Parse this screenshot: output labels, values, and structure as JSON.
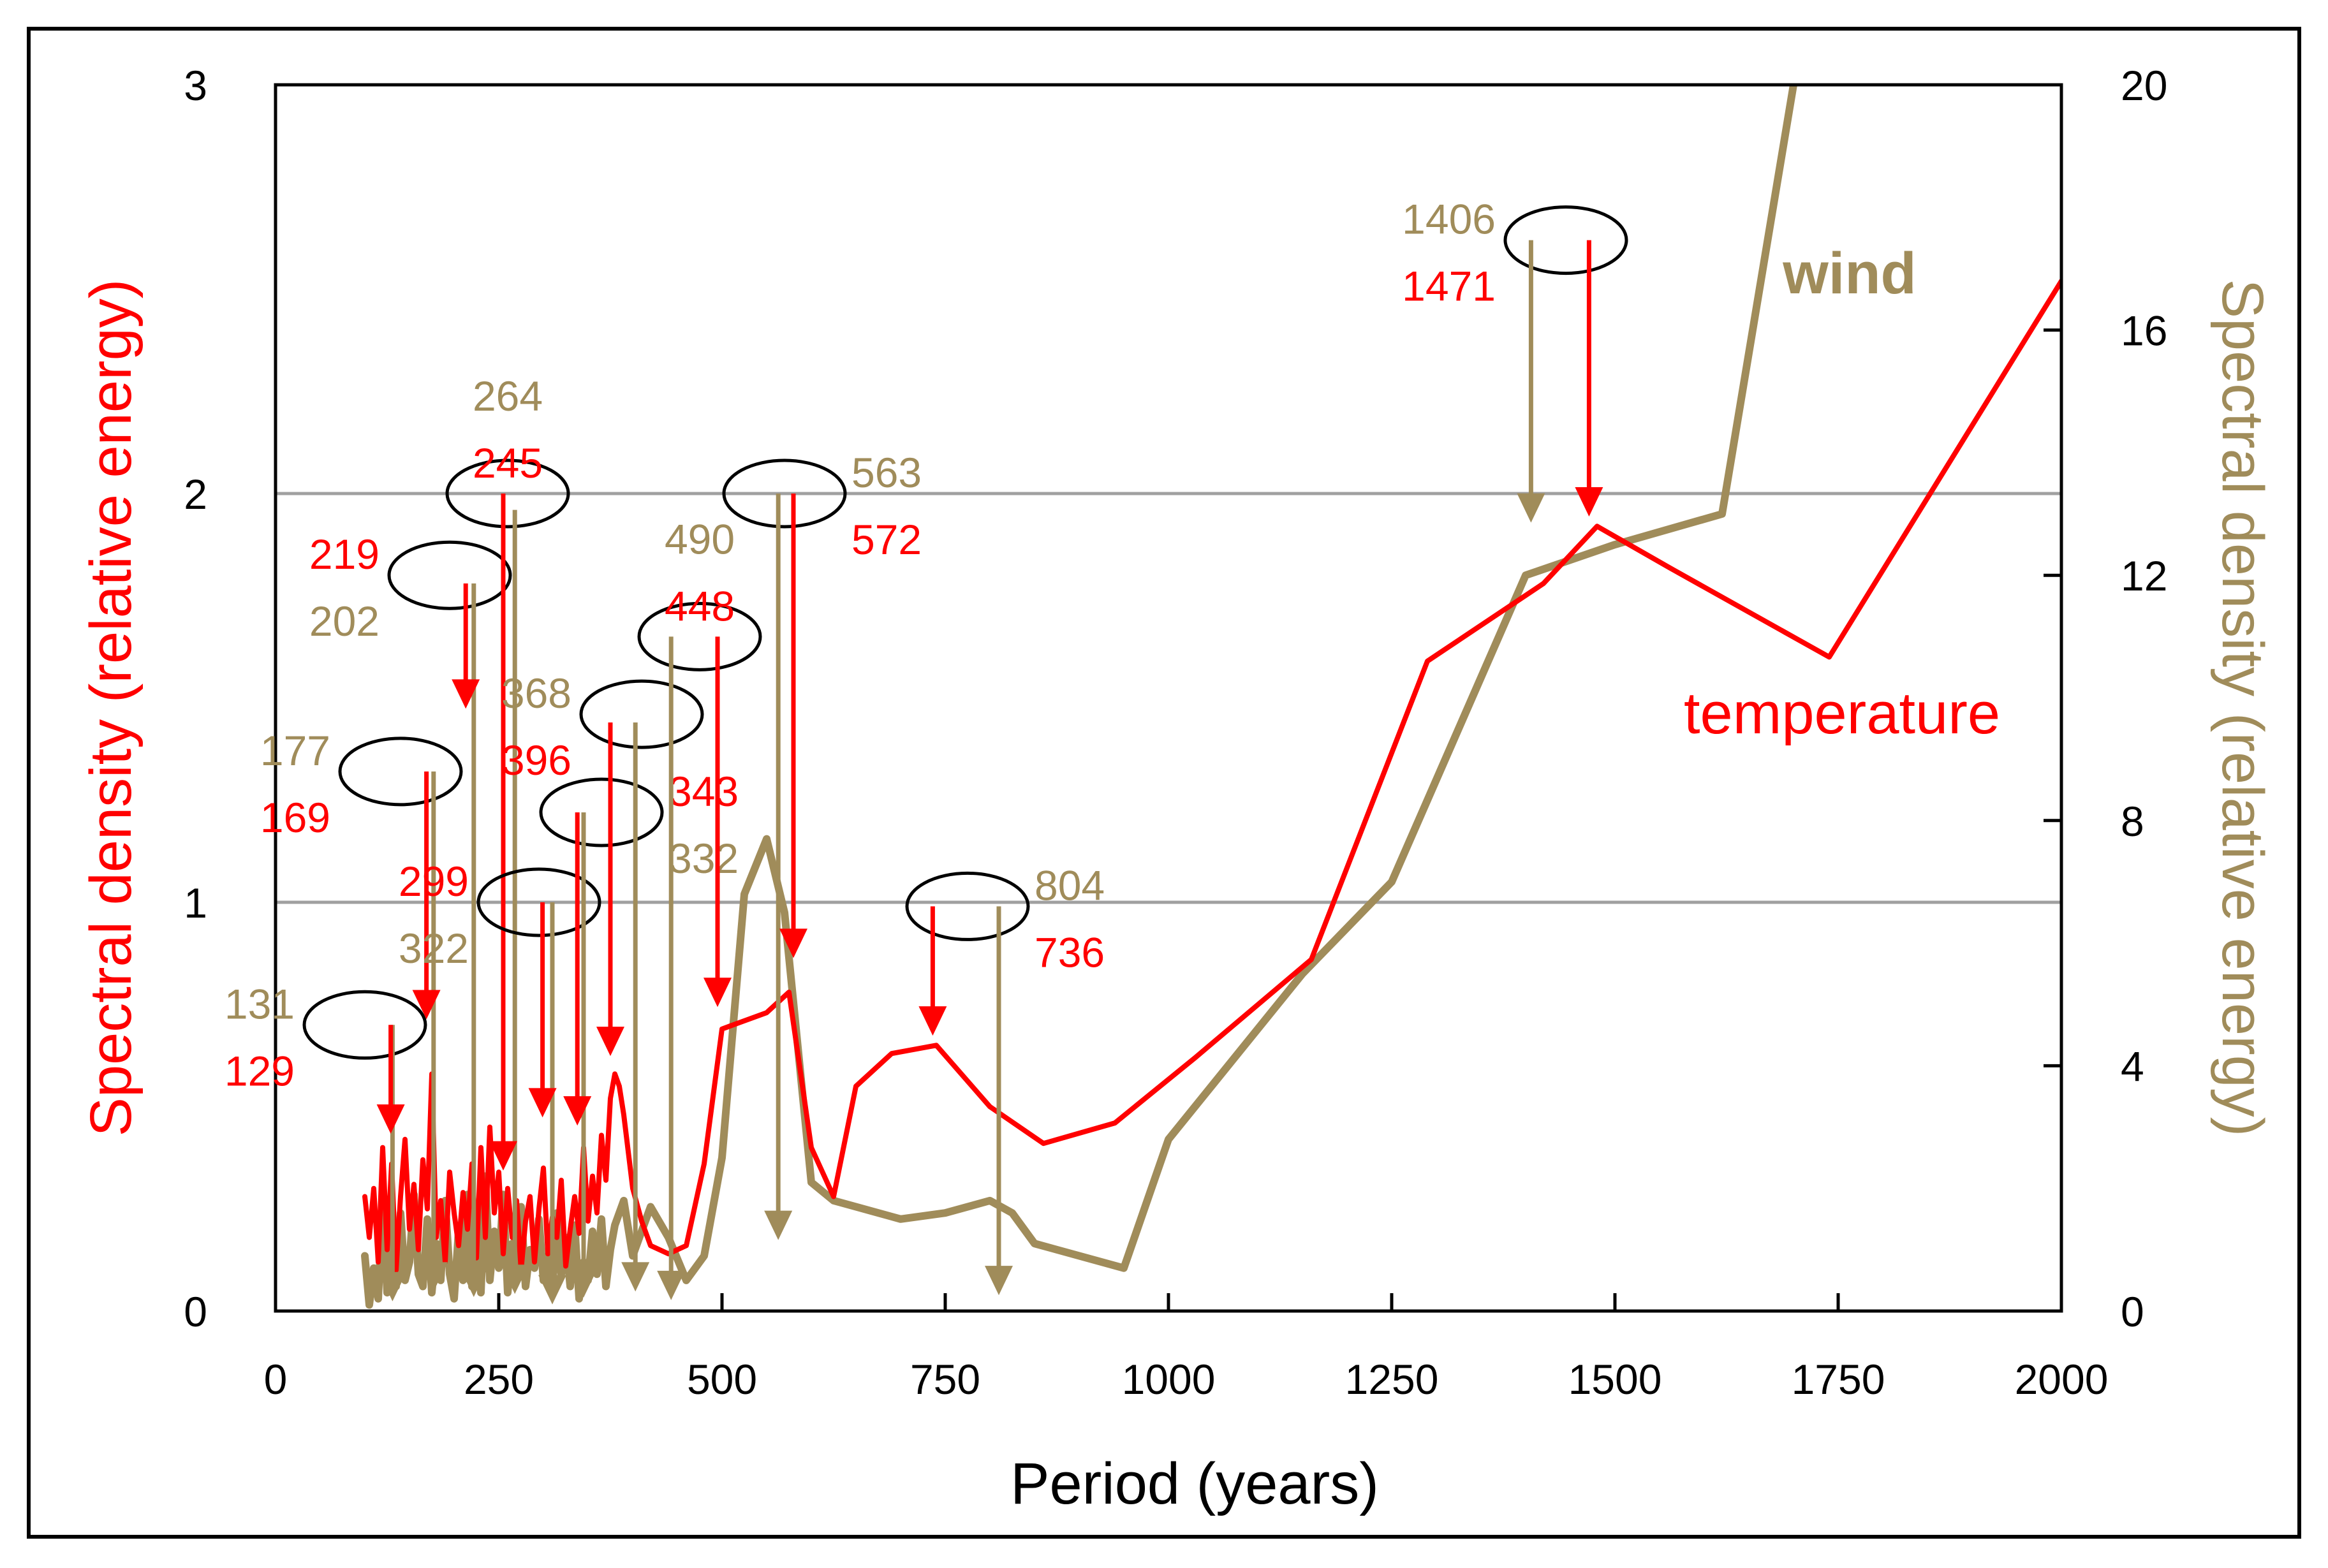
{
  "chart_data": {
    "type": "line",
    "title": "",
    "xlabel": "Period (years)",
    "ylabel_left": "Spectral density (relative energy)",
    "ylabel_right": "Spectral density (relative energy)",
    "xlim": [
      0,
      2000
    ],
    "ylim_left": [
      0,
      3
    ],
    "ylim_right": [
      0,
      20
    ],
    "x_ticks": [
      0,
      250,
      500,
      750,
      1000,
      1250,
      1500,
      1750,
      2000
    ],
    "x_tick_labels": [
      "0",
      "250",
      "500",
      "750",
      "1000",
      "1250",
      "1500",
      "1750",
      "2000"
    ],
    "y_left_ticks": [
      0,
      1,
      2,
      3
    ],
    "y_left_tick_labels": [
      "0",
      "1",
      "2",
      "3"
    ],
    "y_right_ticks": [
      0,
      4,
      8,
      12,
      16,
      20
    ],
    "y_right_tick_labels": [
      "0",
      "4",
      "8",
      "12",
      "16",
      "20"
    ],
    "gridlines_left": [
      1,
      2
    ],
    "colors": {
      "temperature": "#ff0000",
      "wind": "#a08c5a",
      "grid": "#a0a0a0"
    },
    "series": [
      {
        "name": "temperature",
        "label": "temperature",
        "axis": "left",
        "x": [
          100,
          105,
          110,
          115,
          120,
          125,
          130,
          135,
          140,
          145,
          150,
          155,
          160,
          165,
          170,
          175,
          180,
          185,
          190,
          195,
          200,
          205,
          210,
          215,
          220,
          225,
          230,
          235,
          240,
          245,
          250,
          255,
          260,
          265,
          270,
          275,
          280,
          285,
          290,
          295,
          300,
          305,
          310,
          315,
          320,
          325,
          330,
          335,
          340,
          345,
          350,
          355,
          360,
          365,
          370,
          375,
          380,
          385,
          390,
          400,
          410,
          420,
          440,
          460,
          480,
          500,
          550,
          575,
          600,
          625,
          650,
          690,
          740,
          800,
          860,
          940,
          1030,
          1160,
          1290,
          1420,
          1480,
          1560,
          1740,
          2000
        ],
        "y": [
          0.28,
          0.18,
          0.3,
          0.12,
          0.4,
          0.15,
          0.36,
          0.1,
          0.28,
          0.42,
          0.2,
          0.31,
          0.15,
          0.37,
          0.25,
          0.58,
          0.18,
          0.27,
          0.12,
          0.34,
          0.24,
          0.16,
          0.29,
          0.2,
          0.36,
          0.13,
          0.4,
          0.18,
          0.45,
          0.24,
          0.34,
          0.14,
          0.3,
          0.18,
          0.27,
          0.1,
          0.22,
          0.28,
          0.12,
          0.25,
          0.35,
          0.14,
          0.23,
          0.18,
          0.32,
          0.11,
          0.2,
          0.28,
          0.19,
          0.4,
          0.22,
          0.33,
          0.24,
          0.43,
          0.32,
          0.52,
          0.58,
          0.55,
          0.48,
          0.3,
          0.22,
          0.16,
          0.14,
          0.16,
          0.36,
          0.69,
          0.73,
          0.78,
          0.4,
          0.28,
          0.55,
          0.63,
          0.65,
          0.5,
          0.41,
          0.46,
          0.62,
          0.86,
          1.59,
          1.78,
          1.92,
          1.82,
          1.6,
          2.52
        ]
      },
      {
        "name": "wind",
        "label": "wind",
        "axis": "right",
        "x": [
          100,
          105,
          110,
          115,
          120,
          125,
          130,
          135,
          140,
          145,
          150,
          155,
          160,
          165,
          170,
          175,
          180,
          185,
          190,
          195,
          200,
          205,
          210,
          215,
          220,
          225,
          230,
          235,
          240,
          245,
          250,
          255,
          260,
          265,
          270,
          275,
          280,
          285,
          290,
          295,
          300,
          305,
          310,
          315,
          320,
          325,
          330,
          335,
          340,
          345,
          350,
          355,
          360,
          365,
          370,
          375,
          380,
          390,
          400,
          420,
          440,
          460,
          480,
          500,
          525,
          550,
          570,
          600,
          625,
          650,
          700,
          750,
          800,
          825,
          850,
          950,
          1000,
          1150,
          1250,
          1400,
          1500,
          1620,
          1700
        ],
        "y": [
          0.9,
          0.1,
          0.7,
          0.2,
          1.8,
          0.3,
          1.2,
          0.4,
          1.6,
          0.5,
          0.8,
          1.9,
          0.6,
          0.4,
          1.5,
          0.3,
          1.1,
          0.5,
          1.8,
          0.6,
          0.2,
          1.3,
          0.5,
          1.9,
          0.4,
          1.6,
          0.3,
          2.2,
          0.5,
          1.3,
          0.7,
          1.9,
          0.3,
          1.1,
          0.6,
          1.7,
          0.4,
          1.0,
          0.7,
          1.5,
          0.5,
          0.9,
          0.3,
          1.6,
          0.6,
          1.2,
          0.4,
          1.4,
          0.2,
          0.8,
          0.5,
          1.3,
          0.6,
          1.5,
          0.4,
          1.0,
          1.4,
          1.8,
          0.9,
          1.7,
          1.2,
          0.5,
          0.9,
          2.5,
          6.8,
          7.7,
          6.5,
          2.1,
          1.8,
          1.7,
          1.5,
          1.6,
          1.8,
          1.6,
          1.1,
          0.7,
          2.8,
          5.5,
          7.0,
          12.0,
          12.5,
          13.0,
          20.0
        ]
      }
    ],
    "annotations": [
      {
        "ellipse_x": 100,
        "ellipse_y": 0.7,
        "labels": [
          {
            "text": "131",
            "series": "wind"
          },
          {
            "text": "129",
            "series": "temperature"
          }
        ],
        "label_side": "left",
        "arrows": [
          {
            "series": "wind",
            "x": 131,
            "y_from": 0.7,
            "y_to": 0.2
          },
          {
            "series": "temperature",
            "x": 129,
            "y_from": 0.7,
            "y_to": 0.44
          }
        ]
      },
      {
        "ellipse_x": 140,
        "ellipse_y": 1.32,
        "labels": [
          {
            "text": "177",
            "series": "wind"
          },
          {
            "text": "169",
            "series": "temperature"
          }
        ],
        "label_side": "left",
        "arrows": [
          {
            "series": "wind",
            "x": 177,
            "y_from": 1.32,
            "y_to": 0.36
          },
          {
            "series": "temperature",
            "x": 169,
            "y_from": 1.32,
            "y_to": 0.72
          }
        ]
      },
      {
        "ellipse_x": 195,
        "ellipse_y": 1.8,
        "labels": [
          {
            "text": "219",
            "series": "temperature"
          },
          {
            "text": "202",
            "series": "wind"
          }
        ],
        "label_side": "left",
        "arrows": [
          {
            "series": "wind",
            "x": 222,
            "y_from": 1.78,
            "y_to": 0.27
          },
          {
            "series": "temperature",
            "x": 213,
            "y_from": 1.78,
            "y_to": 1.48
          }
        ]
      },
      {
        "ellipse_x": 260,
        "ellipse_y": 2.0,
        "labels": [
          {
            "text": "264",
            "series": "wind"
          },
          {
            "text": "245",
            "series": "temperature"
          }
        ],
        "label_side": "above",
        "arrows": [
          {
            "series": "wind",
            "x": 268,
            "y_from": 1.96,
            "y_to": 0.32
          },
          {
            "series": "temperature",
            "x": 255,
            "y_from": 2.0,
            "y_to": 0.35
          }
        ]
      },
      {
        "ellipse_x": 295,
        "ellipse_y": 1.0,
        "labels": [
          {
            "text": "299",
            "series": "temperature"
          },
          {
            "text": "322",
            "series": "wind"
          }
        ],
        "label_side": "left",
        "arrows": [
          {
            "series": "wind",
            "x": 310,
            "y_from": 1.0,
            "y_to": 0.15
          },
          {
            "series": "temperature",
            "x": 299,
            "y_from": 1.0,
            "y_to": 0.48
          }
        ]
      },
      {
        "ellipse_x": 365,
        "ellipse_y": 1.22,
        "labels": [
          {
            "text": "343",
            "series": "temperature"
          },
          {
            "text": "332",
            "series": "wind"
          }
        ],
        "label_side": "right",
        "arrows": [
          {
            "series": "wind",
            "x": 345,
            "y_from": 1.22,
            "y_to": 0.26
          },
          {
            "series": "temperature",
            "x": 338,
            "y_from": 1.22,
            "y_to": 0.46
          }
        ]
      },
      {
        "ellipse_x": 410,
        "ellipse_y": 1.46,
        "labels": [
          {
            "text": "368",
            "series": "wind"
          },
          {
            "text": "396",
            "series": "temperature"
          }
        ],
        "label_side": "left",
        "arrows": [
          {
            "series": "wind",
            "x": 403,
            "y_from": 1.44,
            "y_to": 0.36
          },
          {
            "series": "temperature",
            "x": 375,
            "y_from": 1.44,
            "y_to": 0.63
          }
        ]
      },
      {
        "ellipse_x": 475,
        "ellipse_y": 1.65,
        "labels": [
          {
            "text": "490",
            "series": "wind"
          },
          {
            "text": "448",
            "series": "temperature"
          }
        ],
        "label_side": "above",
        "arrows": [
          {
            "series": "wind",
            "x": 443,
            "y_from": 1.65,
            "y_to": 0.22
          },
          {
            "series": "temperature",
            "x": 495,
            "y_from": 1.65,
            "y_to": 0.75
          }
        ]
      },
      {
        "ellipse_x": 570,
        "ellipse_y": 2.0,
        "labels": [
          {
            "text": "563",
            "series": "wind"
          },
          {
            "text": "572",
            "series": "temperature"
          }
        ],
        "label_side": "right",
        "arrows": [
          {
            "series": "wind",
            "x": 563,
            "y_from": 2.0,
            "y_to": 1.2
          },
          {
            "series": "temperature",
            "x": 580,
            "y_from": 2.0,
            "y_to": 0.87
          }
        ]
      },
      {
        "ellipse_x": 775,
        "ellipse_y": 0.99,
        "labels": [
          {
            "text": "804",
            "series": "wind"
          },
          {
            "text": "736",
            "series": "temperature"
          }
        ],
        "label_side": "right",
        "arrows": [
          {
            "series": "wind",
            "x": 810,
            "y_from": 0.99,
            "y_to": 0.3
          },
          {
            "series": "temperature",
            "x": 736,
            "y_from": 0.99,
            "y_to": 0.68
          }
        ]
      },
      {
        "ellipse_x": 1445,
        "ellipse_y": 2.62,
        "labels": [
          {
            "text": "1406",
            "series": "wind"
          },
          {
            "text": "1471",
            "series": "temperature"
          }
        ],
        "label_side": "left",
        "arrows": [
          {
            "series": "wind",
            "x": 1406,
            "y_from": 2.62,
            "y_to": 12.9
          },
          {
            "series": "temperature",
            "x": 1471,
            "y_from": 2.62,
            "y_to": 1.95
          }
        ]
      }
    ]
  }
}
